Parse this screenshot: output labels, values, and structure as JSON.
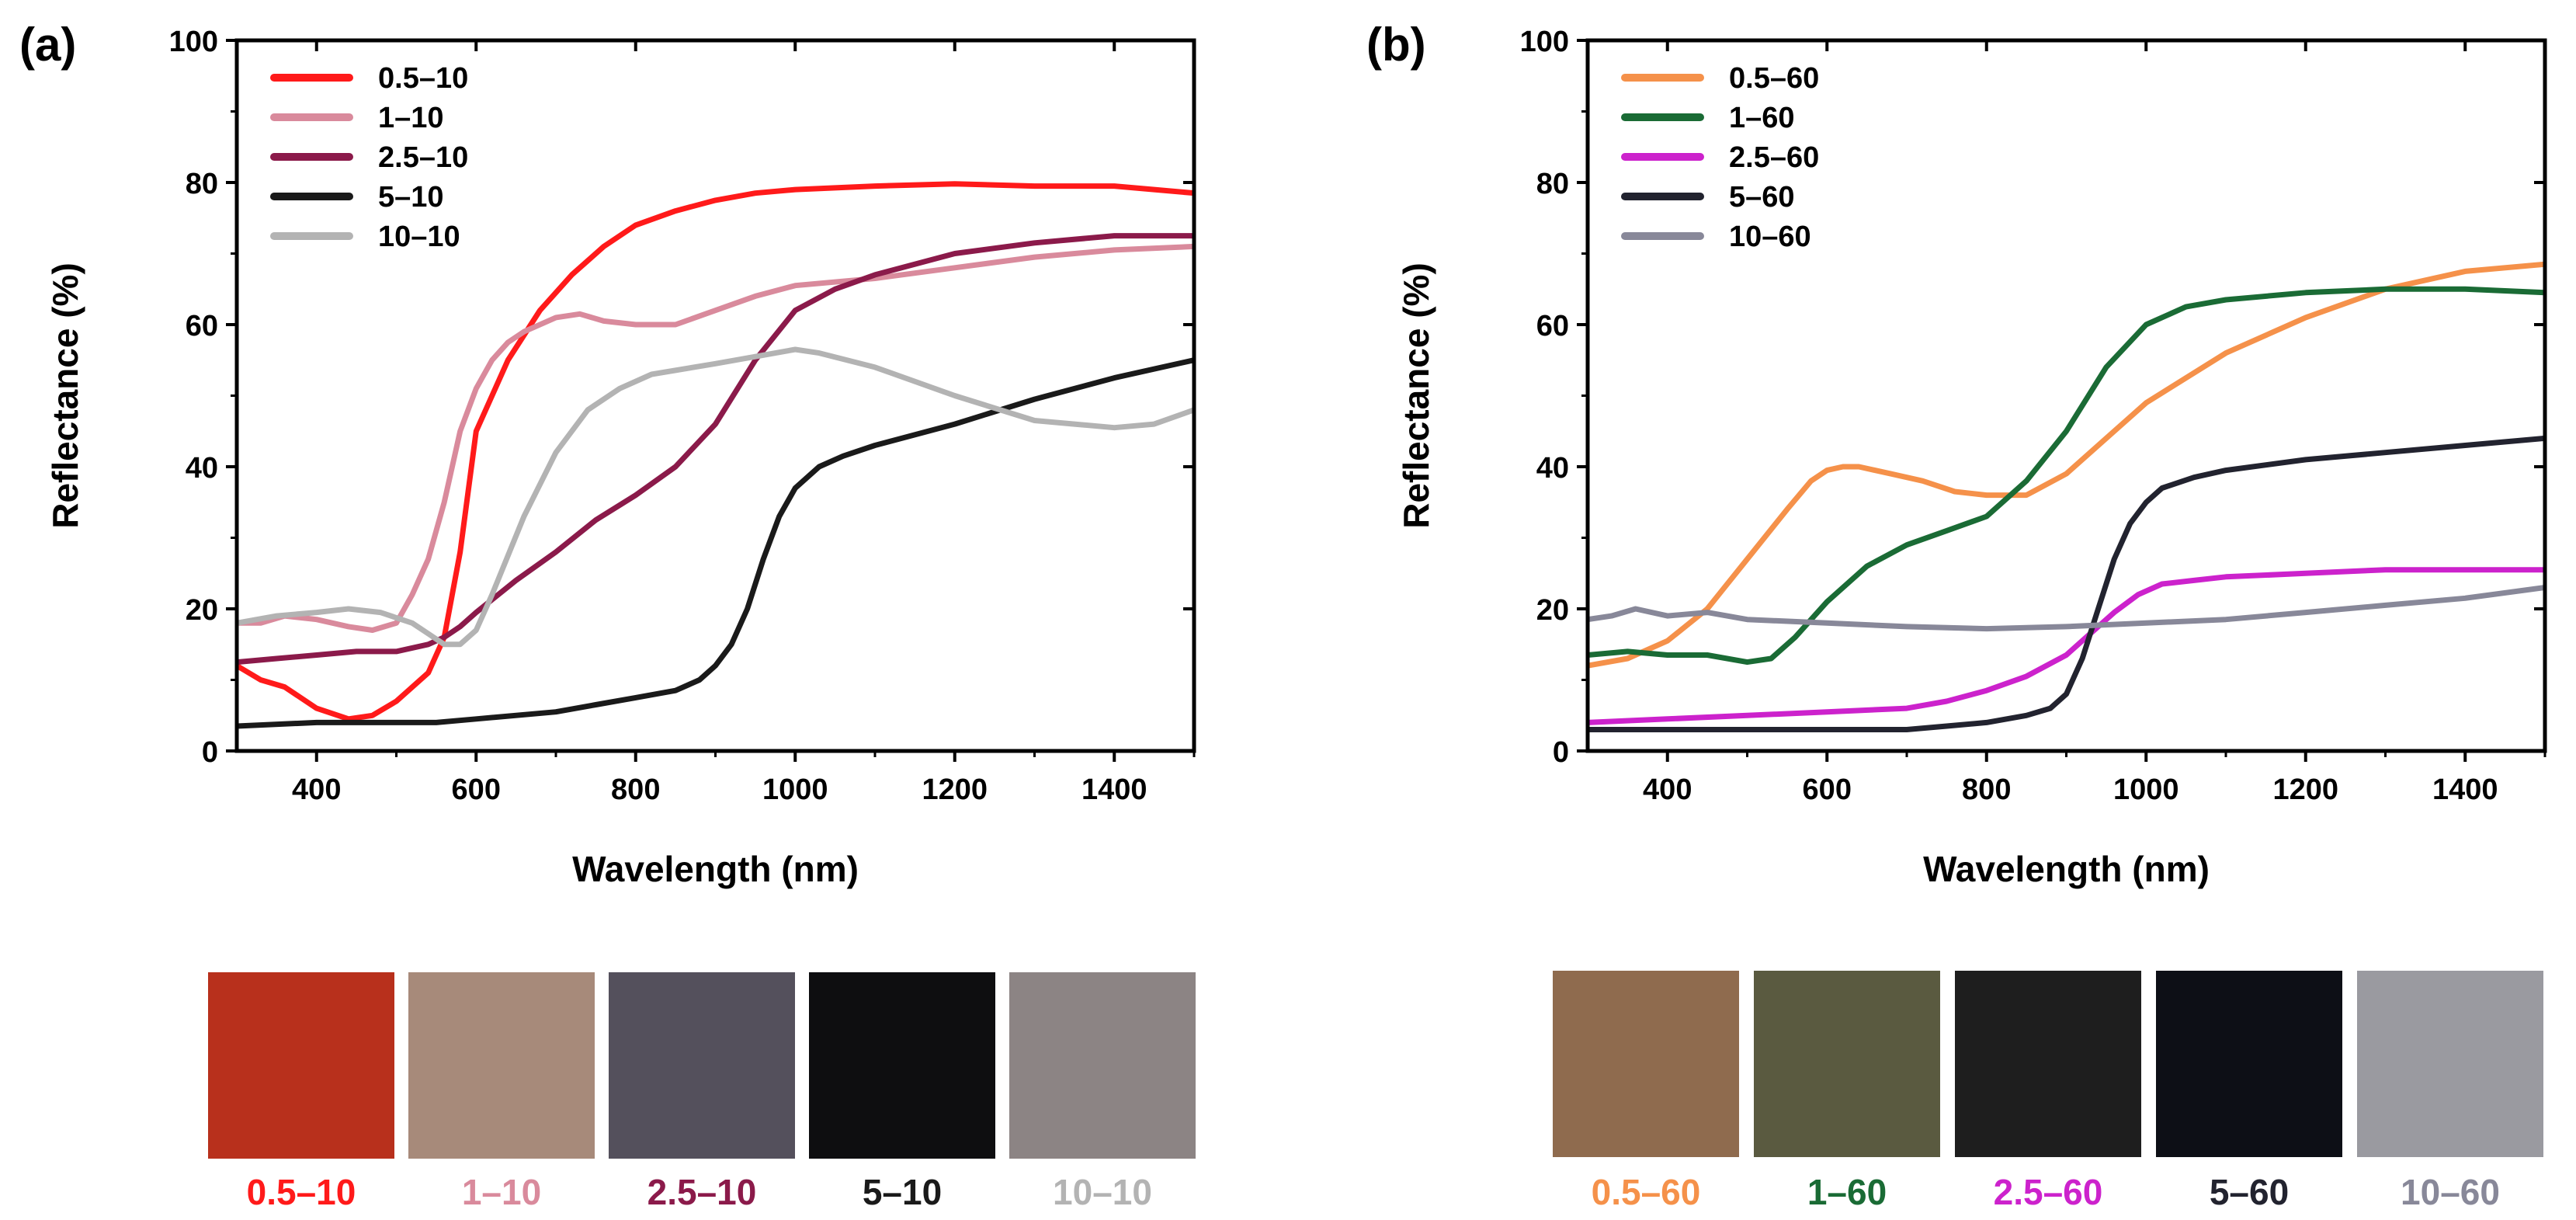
{
  "chart_data": [
    {
      "panel_label": "(a)",
      "type": "line",
      "xlabel": "Wavelength (nm)",
      "ylabel": "Reflectance (%)",
      "xlim": [
        300,
        1500
      ],
      "ylim": [
        0,
        100
      ],
      "xticks": [
        400,
        600,
        800,
        1000,
        1200,
        1400
      ],
      "yticks": [
        0,
        20,
        40,
        60,
        80,
        100
      ],
      "legend_position": "top-left",
      "series": [
        {
          "name": "0.5–10",
          "color": "#ff1a1a",
          "x": [
            300,
            330,
            360,
            400,
            440,
            470,
            500,
            540,
            560,
            580,
            600,
            640,
            680,
            720,
            760,
            800,
            850,
            900,
            950,
            1000,
            1100,
            1200,
            1300,
            1400,
            1450,
            1500
          ],
          "y": [
            12,
            10,
            9,
            6,
            4.5,
            5,
            7,
            11,
            16,
            28,
            45,
            55,
            62,
            67,
            71,
            74,
            76,
            77.5,
            78.5,
            79,
            79.5,
            79.8,
            79.5,
            79.5,
            79,
            78.5
          ]
        },
        {
          "name": "1–10",
          "color": "#d98a9c",
          "x": [
            300,
            330,
            360,
            400,
            440,
            470,
            500,
            520,
            540,
            560,
            580,
            600,
            620,
            640,
            660,
            700,
            730,
            760,
            800,
            850,
            900,
            950,
            1000,
            1100,
            1200,
            1300,
            1400,
            1500
          ],
          "y": [
            18,
            18,
            19,
            18.5,
            17.5,
            17,
            18,
            22,
            27,
            35,
            45,
            51,
            55,
            57.5,
            59,
            61,
            61.5,
            60.5,
            60,
            60,
            62,
            64,
            65.5,
            66.5,
            68,
            69.5,
            70.5,
            71
          ]
        },
        {
          "name": "2.5–10",
          "color": "#8b1a4a",
          "x": [
            300,
            350,
            400,
            450,
            500,
            540,
            560,
            580,
            600,
            650,
            700,
            750,
            800,
            850,
            900,
            950,
            1000,
            1050,
            1100,
            1200,
            1300,
            1400,
            1500
          ],
          "y": [
            12.5,
            13,
            13.5,
            14,
            14,
            15,
            16,
            17.5,
            19.5,
            24,
            28,
            32.5,
            36,
            40,
            46,
            55,
            62,
            65,
            67,
            70,
            71.5,
            72.5,
            72.5
          ]
        },
        {
          "name": "5–10",
          "color": "#1a1a1a",
          "x": [
            300,
            400,
            500,
            550,
            600,
            700,
            750,
            800,
            850,
            880,
            900,
            920,
            940,
            960,
            980,
            1000,
            1030,
            1060,
            1100,
            1200,
            1300,
            1400,
            1500
          ],
          "y": [
            3.5,
            4,
            4,
            4,
            4.5,
            5.5,
            6.5,
            7.5,
            8.5,
            10,
            12,
            15,
            20,
            27,
            33,
            37,
            40,
            41.5,
            43,
            46,
            49.5,
            52.5,
            55
          ]
        },
        {
          "name": "10–10",
          "color": "#b3b3b3",
          "x": [
            300,
            350,
            400,
            440,
            480,
            520,
            540,
            560,
            580,
            600,
            620,
            660,
            700,
            740,
            780,
            820,
            900,
            950,
            1000,
            1030,
            1100,
            1200,
            1300,
            1350,
            1400,
            1450,
            1500
          ],
          "y": [
            18,
            19,
            19.5,
            20,
            19.5,
            18,
            16.5,
            15,
            15,
            17,
            22,
            33,
            42,
            48,
            51,
            53,
            54.5,
            55.5,
            56.5,
            56,
            54,
            50,
            46.5,
            46,
            45.5,
            46,
            48
          ]
        }
      ],
      "swatches": [
        {
          "label": "0.5–10",
          "color": "#ff1a1a",
          "photo": "#b8301c"
        },
        {
          "label": "1–10",
          "color": "#d98a9c",
          "photo": "#a78a7a"
        },
        {
          "label": "2.5–10",
          "color": "#8b1a4a",
          "photo": "#54505c"
        },
        {
          "label": "5–10",
          "color": "#1a1a1a",
          "photo": "#0e0e10"
        },
        {
          "label": "10–10",
          "color": "#b3b3b3",
          "photo": "#8c8484"
        }
      ]
    },
    {
      "panel_label": "(b)",
      "type": "line",
      "xlabel": "Wavelength (nm)",
      "ylabel": "Reflectance (%)",
      "xlim": [
        300,
        1500
      ],
      "ylim": [
        0,
        100
      ],
      "xticks": [
        400,
        600,
        800,
        1000,
        1200,
        1400
      ],
      "yticks": [
        0,
        20,
        40,
        60,
        80,
        100
      ],
      "legend_position": "top-left",
      "series": [
        {
          "name": "0.5–60",
          "color": "#f5914a",
          "x": [
            300,
            350,
            400,
            450,
            500,
            550,
            580,
            600,
            620,
            640,
            680,
            720,
            760,
            800,
            850,
            900,
            950,
            1000,
            1100,
            1200,
            1300,
            1400,
            1500
          ],
          "y": [
            12,
            13,
            15.5,
            20,
            27,
            34,
            38,
            39.5,
            40,
            40,
            39,
            38,
            36.5,
            36,
            36,
            39,
            44,
            49,
            56,
            61,
            65,
            67.5,
            68.5
          ]
        },
        {
          "name": "1–60",
          "color": "#1a6b35",
          "x": [
            300,
            350,
            400,
            450,
            500,
            530,
            560,
            600,
            650,
            700,
            750,
            800,
            850,
            900,
            950,
            1000,
            1050,
            1100,
            1200,
            1300,
            1400,
            1500
          ],
          "y": [
            13.5,
            14,
            13.5,
            13.5,
            12.5,
            13,
            16,
            21,
            26,
            29,
            31,
            33,
            38,
            45,
            54,
            60,
            62.5,
            63.5,
            64.5,
            65,
            65,
            64.5
          ]
        },
        {
          "name": "2.5–60",
          "color": "#cc22cc",
          "x": [
            300,
            400,
            500,
            600,
            700,
            750,
            800,
            850,
            900,
            930,
            960,
            990,
            1020,
            1060,
            1100,
            1200,
            1300,
            1400,
            1500
          ],
          "y": [
            4,
            4.5,
            5,
            5.5,
            6,
            7,
            8.5,
            10.5,
            13.5,
            16.5,
            19.5,
            22,
            23.5,
            24,
            24.5,
            25,
            25.5,
            25.5,
            25.5
          ]
        },
        {
          "name": "5–60",
          "color": "#22232f",
          "x": [
            300,
            400,
            500,
            600,
            700,
            750,
            800,
            850,
            880,
            900,
            920,
            940,
            960,
            980,
            1000,
            1020,
            1060,
            1100,
            1200,
            1300,
            1400,
            1500
          ],
          "y": [
            3,
            3,
            3,
            3,
            3,
            3.5,
            4,
            5,
            6,
            8,
            13,
            20,
            27,
            32,
            35,
            37,
            38.5,
            39.5,
            41,
            42,
            43,
            44
          ]
        },
        {
          "name": "10–60",
          "color": "#888899",
          "x": [
            300,
            330,
            360,
            400,
            450,
            500,
            600,
            700,
            800,
            900,
            1000,
            1100,
            1200,
            1300,
            1400,
            1500
          ],
          "y": [
            18.5,
            19,
            20,
            19,
            19.5,
            18.5,
            18,
            17.5,
            17.2,
            17.5,
            18,
            18.5,
            19.5,
            20.5,
            21.5,
            23
          ]
        }
      ],
      "swatches": [
        {
          "label": "0.5–60",
          "color": "#f5914a",
          "photo": "#8f6b4e"
        },
        {
          "label": "1–60",
          "color": "#1a6b35",
          "photo": "#5a5a40"
        },
        {
          "label": "2.5–60",
          "color": "#cc22cc",
          "photo": "#1e1e1e"
        },
        {
          "label": "5–60",
          "color": "#22232f",
          "photo": "#0d0f16"
        },
        {
          "label": "10–60",
          "color": "#888899",
          "photo": "#9a9aa0"
        }
      ]
    }
  ]
}
